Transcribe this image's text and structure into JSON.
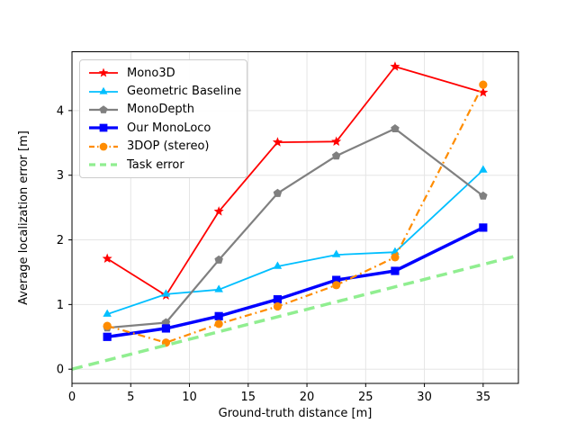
{
  "chart_data": {
    "type": "line",
    "title": "",
    "xlabel": "Ground-truth distance [m]",
    "ylabel": "Average localization error [m]",
    "xlim": [
      0,
      38
    ],
    "ylim": [
      -0.22,
      4.91
    ],
    "xticks": [
      0,
      5,
      10,
      15,
      20,
      25,
      30,
      35
    ],
    "yticks": [
      0,
      1,
      2,
      3,
      4
    ],
    "grid": true,
    "grid_color": "#e5e5e5",
    "background_color": "#ffffff",
    "spine_color": "#000000",
    "legend_position": "upper-left",
    "series": [
      {
        "name": "Mono3D",
        "color": "#ff0000",
        "marker": "star",
        "linestyle": "solid",
        "linewidth": 1.8,
        "x": [
          3,
          8,
          12.5,
          17.5,
          22.5,
          27.5,
          35
        ],
        "y": [
          1.71,
          1.14,
          2.44,
          3.51,
          3.52,
          4.68,
          4.28
        ]
      },
      {
        "name": "Geometric Baseline",
        "color": "#00bfff",
        "marker": "triangle-up",
        "linestyle": "solid",
        "linewidth": 1.8,
        "x": [
          3,
          8,
          12.5,
          17.5,
          22.5,
          27.5,
          35
        ],
        "y": [
          0.85,
          1.16,
          1.23,
          1.59,
          1.77,
          1.81,
          3.08
        ]
      },
      {
        "name": "MonoDepth",
        "color": "#808080",
        "marker": "pentagon",
        "linestyle": "solid",
        "linewidth": 2.2,
        "x": [
          3,
          8,
          12.5,
          17.5,
          22.5,
          27.5,
          35
        ],
        "y": [
          0.64,
          0.72,
          1.69,
          2.72,
          3.3,
          3.72,
          2.68
        ]
      },
      {
        "name": "Our MonoLoco",
        "color": "#0000ff",
        "marker": "square",
        "linestyle": "solid",
        "linewidth": 3.5,
        "x": [
          3,
          8,
          12.5,
          17.5,
          22.5,
          27.5,
          35
        ],
        "y": [
          0.5,
          0.63,
          0.82,
          1.08,
          1.38,
          1.52,
          2.19
        ]
      },
      {
        "name": "3DOP (stereo)",
        "color": "#ff8c00",
        "marker": "circle",
        "linestyle": "dashdot",
        "linewidth": 2.2,
        "x": [
          3,
          8,
          12.5,
          17.5,
          22.5,
          27.5,
          35
        ],
        "y": [
          0.67,
          0.41,
          0.7,
          0.97,
          1.3,
          1.73,
          4.4
        ]
      },
      {
        "name": "Task error",
        "color": "#90ee90",
        "marker": "none",
        "linestyle": "dashed",
        "linewidth": 3.5,
        "x": [
          0,
          38
        ],
        "y": [
          0,
          1.76
        ]
      }
    ]
  }
}
